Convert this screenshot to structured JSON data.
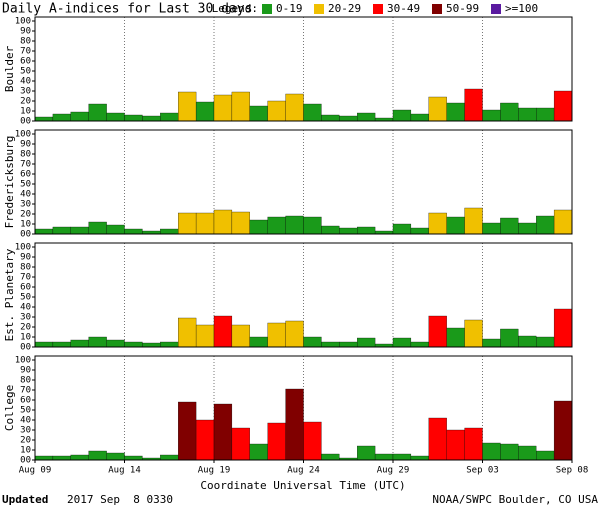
{
  "chart_data": {
    "type": "bar",
    "title": "Daily A-indices for Last 30 days",
    "legend_title": "Legend:",
    "legend": [
      {
        "label": "0-19",
        "color": "#1a9a1a"
      },
      {
        "label": "20-29",
        "color": "#f0c000"
      },
      {
        "label": "30-49",
        "color": "#ff0000"
      },
      {
        "label": "50-99",
        "color": "#800000"
      },
      {
        "label": ">=100",
        "color": "#5a1aa0"
      }
    ],
    "xlabel": "Coordinate Universal Time (UTC)",
    "xlim": [
      0,
      30
    ],
    "xticks": [
      {
        "value": 0,
        "label": "Aug 09"
      },
      {
        "value": 5,
        "label": "Aug 14"
      },
      {
        "value": 10,
        "label": "Aug 19"
      },
      {
        "value": 15,
        "label": "Aug 24"
      },
      {
        "value": 20,
        "label": "Aug 29"
      },
      {
        "value": 25,
        "label": "Sep 03"
      },
      {
        "value": 30,
        "label": "Sep 08"
      }
    ],
    "ylim": [
      0,
      100
    ],
    "yticks": [
      {
        "value": 0,
        "label": "00"
      },
      10,
      20,
      30,
      40,
      50,
      60,
      70,
      80,
      90,
      100
    ],
    "grid": true,
    "series": [
      {
        "name": "Boulder",
        "values": [
          4,
          7,
          9,
          17,
          8,
          6,
          5,
          8,
          29,
          19,
          26,
          29,
          15,
          20,
          27,
          17,
          6,
          5,
          8,
          3,
          11,
          7,
          24,
          18,
          32,
          11,
          18,
          13,
          13,
          30
        ]
      },
      {
        "name": "Fredericksburg",
        "values": [
          5,
          7,
          7,
          12,
          9,
          5,
          3,
          5,
          21,
          21,
          24,
          22,
          14,
          17,
          18,
          17,
          8,
          6,
          7,
          3,
          10,
          6,
          21,
          17,
          26,
          11,
          16,
          11,
          18,
          24
        ]
      },
      {
        "name": "Est. Planetary",
        "values": [
          5,
          5,
          7,
          10,
          7,
          5,
          4,
          5,
          29,
          22,
          31,
          22,
          10,
          24,
          26,
          10,
          5,
          5,
          9,
          3,
          9,
          5,
          31,
          19,
          27,
          8,
          18,
          11,
          10,
          38
        ]
      },
      {
        "name": "College",
        "values": [
          4,
          4,
          5,
          9,
          7,
          4,
          2,
          5,
          58,
          40,
          56,
          32,
          16,
          37,
          71,
          38,
          6,
          2,
          14,
          6,
          6,
          4,
          42,
          30,
          32,
          17,
          16,
          14,
          9,
          59
        ]
      }
    ],
    "updated_label": "Updated",
    "updated": "2017 Sep  8 0330",
    "source": "NOAA/SWPC Boulder, CO USA"
  }
}
